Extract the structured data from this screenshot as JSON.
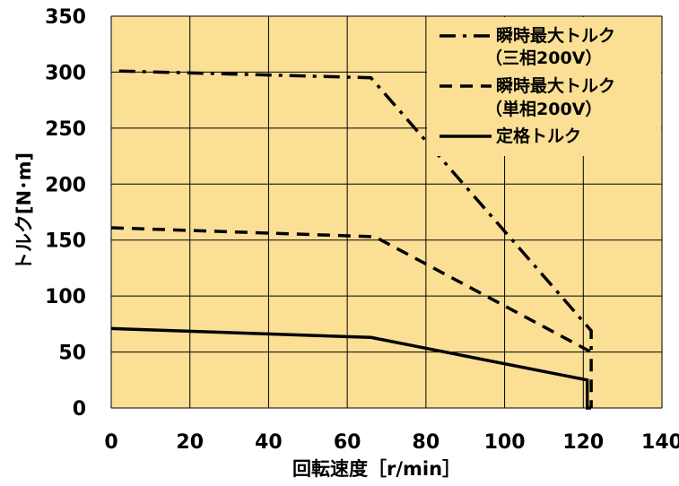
{
  "chart_data": {
    "type": "line",
    "xlabel": "回転速度［r/min］",
    "ylabel": "トルク[N･m]",
    "xlim": [
      0,
      140
    ],
    "ylim": [
      0,
      350
    ],
    "xticks": [
      "0",
      "20",
      "40",
      "60",
      "80",
      "100",
      "120",
      "140"
    ],
    "yticks": [
      "0",
      "50",
      "100",
      "150",
      "200",
      "250",
      "300",
      "350"
    ],
    "grid": true,
    "background": "#fadf94",
    "legend_position": "top-right",
    "series": [
      {
        "name_lines": [
          "瞬時最大トルク",
          "（三相200V）"
        ],
        "style": "dash-dot",
        "x": [
          2,
          66,
          122,
          122
        ],
        "y": [
          301,
          295,
          69,
          50
        ]
      },
      {
        "name_lines": [
          "瞬時最大トルク",
          "（単相200V）"
        ],
        "style": "dashed",
        "x": [
          0,
          67,
          122,
          122
        ],
        "y": [
          161,
          153,
          50,
          0
        ]
      },
      {
        "name_lines": [
          "定格トルク"
        ],
        "style": "solid",
        "x": [
          0,
          66,
          121,
          121,
          122
        ],
        "y": [
          71,
          63,
          25,
          0,
          0
        ]
      }
    ]
  }
}
